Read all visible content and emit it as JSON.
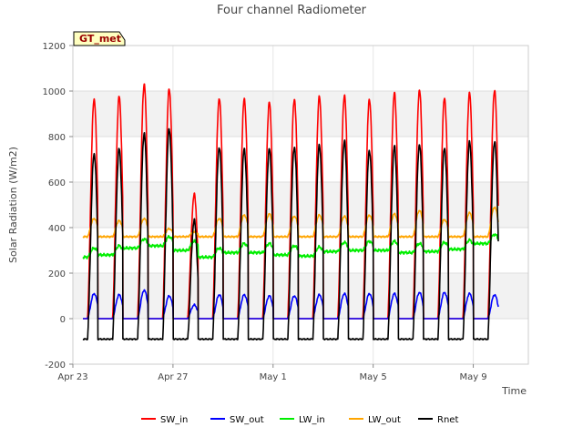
{
  "chart_data": {
    "type": "line",
    "title": "Four channel Radiometer",
    "xlabel": "Time",
    "ylabel": "Solar Radiation (W/m2)",
    "site_badge": "GT_met",
    "ylim": [
      -200,
      1200
    ],
    "yticks": [
      -200,
      0,
      200,
      400,
      600,
      800,
      1000,
      1200
    ],
    "xlim_days": [
      0,
      18.2
    ],
    "xticks": [
      {
        "day": 0,
        "label": "Apr 23"
      },
      {
        "day": 4,
        "label": "Apr 27"
      },
      {
        "day": 8,
        "label": "May 1"
      },
      {
        "day": 12,
        "label": "May 5"
      },
      {
        "day": 16,
        "label": "May 9"
      }
    ],
    "day_peak_times": [
      0.85,
      1.85,
      2.85,
      3.85,
      4.85,
      5.85,
      6.85,
      7.85,
      8.85,
      9.85,
      10.85,
      11.85,
      12.85,
      13.85,
      14.85,
      15.85,
      16.85,
      17.85
    ],
    "series": [
      {
        "name": "SW_in",
        "color": "#ff0000",
        "kind": "SW_in",
        "daily_peaks": [
          965,
          975,
          1030,
          1010,
          545,
          970,
          965,
          950,
          965,
          975,
          980,
          965,
          990,
          1005,
          970,
          990,
          1005,
          0
        ]
      },
      {
        "name": "SW_out",
        "color": "#0000ff",
        "kind": "SW_out",
        "daily_peaks": [
          110,
          105,
          125,
          100,
          60,
          105,
          105,
          100,
          100,
          105,
          110,
          110,
          110,
          115,
          115,
          110,
          105,
          0
        ]
      },
      {
        "name": "LW_in",
        "color": "#00ee00",
        "kind": "LW_in",
        "daily_peaks": [
          310,
          320,
          350,
          360,
          340,
          310,
          330,
          330,
          320,
          315,
          335,
          340,
          340,
          330,
          335,
          345,
          370,
          0
        ]
      },
      {
        "name": "LW_out",
        "color": "#ffa500",
        "kind": "LW_out",
        "daily_peaks": [
          440,
          430,
          440,
          395,
          380,
          440,
          455,
          460,
          450,
          455,
          450,
          455,
          460,
          475,
          435,
          465,
          490,
          0
        ]
      },
      {
        "name": "Rnet",
        "color": "#000000",
        "kind": "Rnet",
        "daily_peaks": [
          725,
          745,
          815,
          835,
          430,
          755,
          745,
          745,
          755,
          760,
          780,
          740,
          755,
          765,
          750,
          775,
          780,
          0
        ]
      }
    ]
  }
}
